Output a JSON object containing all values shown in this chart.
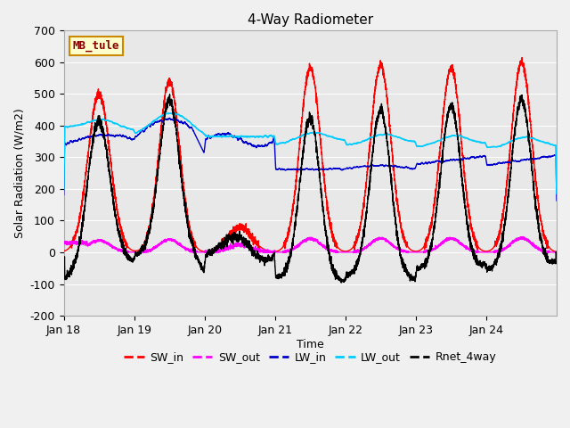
{
  "title": "4-Way Radiometer",
  "xlabel": "Time",
  "ylabel": "Solar Radiation (W/m2)",
  "ylim": [
    -200,
    700
  ],
  "yticks": [
    -200,
    -100,
    0,
    100,
    200,
    300,
    400,
    500,
    600,
    700
  ],
  "xlim": [
    0,
    168
  ],
  "xtick_positions": [
    0,
    24,
    48,
    72,
    96,
    120,
    144
  ],
  "xtick_labels": [
    "Jan 18",
    "Jan 19",
    "Jan 20",
    "Jan 21",
    "Jan 22",
    "Jan 23",
    "Jan 24"
  ],
  "annotation_text": "MB_tule",
  "annotation_box_color": "#ffffcc",
  "annotation_box_edgecolor": "#cc8800",
  "annotation_text_color": "#880000",
  "plot_bg_color": "#e8e8e8",
  "fig_bg_color": "#f0f0f0",
  "grid_color": "#ffffff",
  "series": {
    "SW_in": {
      "color": "#ff0000",
      "lw": 1.0
    },
    "SW_out": {
      "color": "#ff00ff",
      "lw": 1.0
    },
    "LW_in": {
      "color": "#0000cc",
      "lw": 1.0
    },
    "LW_out": {
      "color": "#00ccff",
      "lw": 1.2
    },
    "Rnet_4way": {
      "color": "#000000",
      "lw": 1.0
    }
  }
}
